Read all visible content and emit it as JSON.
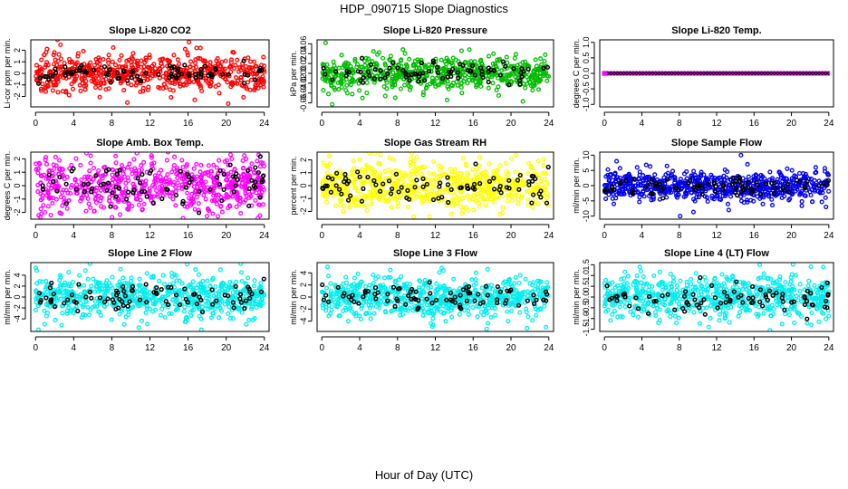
{
  "figure": {
    "title": "HDP_090715  Slope Diagnostics",
    "xlabel": "Hour of Day (UTC)"
  },
  "chart_data": [
    {
      "type": "scatter",
      "title": "Slope Li-820 CO2",
      "ylabel": "Li-cor ppm per min.",
      "xlim": [
        -0.5,
        24.5
      ],
      "xticks": [
        0,
        4,
        8,
        12,
        16,
        20,
        24
      ],
      "ylim": [
        -2.9,
        2.9
      ],
      "yticks": [
        -2,
        -1,
        0,
        1,
        2
      ],
      "color": "#ff0000",
      "main_series": {
        "count": 600,
        "spread": 0.75,
        "outliers": [
          [
            1.2,
            2.1
          ],
          [
            1.9,
            1.6
          ],
          [
            2.3,
            2.9
          ],
          [
            15.7,
            2.1
          ],
          [
            16.1,
            2.7
          ],
          [
            16.9,
            2.2
          ],
          [
            16.7,
            -2.3
          ],
          [
            17.3,
            2.2
          ],
          [
            21.8,
            -1.1
          ],
          [
            13.4,
            -1.3
          ]
        ]
      },
      "black_series": {
        "count": 85,
        "spread": 0.4
      }
    },
    {
      "type": "scatter",
      "title": "Slope Li-820 Pressure",
      "ylabel": "kPa per min.",
      "xlim": [
        -0.5,
        24.5
      ],
      "xticks": [
        0,
        4,
        8,
        12,
        16,
        20,
        24
      ],
      "ylim": [
        -0.068,
        0.068
      ],
      "yticks": [
        -0.06,
        -0.04,
        -0.02,
        0,
        0.02,
        0.04,
        0.06
      ],
      "color": "#00bb00",
      "main_series": {
        "count": 600,
        "spread": 0.018,
        "outliers": [
          [
            0.4,
            0.062
          ],
          [
            0.7,
            -0.042
          ],
          [
            1.1,
            -0.063
          ],
          [
            2.7,
            -0.04
          ],
          [
            4.3,
            -0.05
          ],
          [
            8.8,
            0.04
          ],
          [
            18.7,
            -0.045
          ]
        ]
      },
      "black_series": {
        "count": 85,
        "spread": 0.012
      }
    },
    {
      "type": "scatter",
      "title": "Slope Li-820 Temp.",
      "ylabel": "degrees C per min.",
      "xlim": [
        -0.5,
        24.5
      ],
      "xticks": [
        0,
        4,
        8,
        12,
        16,
        20,
        24
      ],
      "ylim": [
        -1.08,
        1.08
      ],
      "yticks": [
        -1.0,
        -0.5,
        0.0,
        0.5,
        1.0
      ],
      "color": "#ff00ff",
      "main_series": {
        "count": 220,
        "spread": 0,
        "outliers": []
      },
      "black_series": {
        "count": 70,
        "spread": 0
      }
    },
    {
      "type": "scatter",
      "title": "Slope Amb. Box Temp.",
      "ylabel": "degrees C per min.",
      "xlim": [
        -0.5,
        24.5
      ],
      "xticks": [
        0,
        4,
        8,
        12,
        16,
        20,
        24
      ],
      "ylim": [
        -2.5,
        2.5
      ],
      "yticks": [
        -2,
        -1,
        0,
        1,
        2
      ],
      "color": "#ff00ff",
      "main_series": {
        "count": 650,
        "spread": 0.95,
        "outliers": [
          [
            1.6,
            -2.2
          ],
          [
            5.3,
            -1.9
          ],
          [
            8.4,
            2.2
          ],
          [
            13.9,
            2.5
          ],
          [
            18.6,
            -2.1
          ],
          [
            23.4,
            2.3
          ]
        ]
      },
      "black_series": {
        "count": 85,
        "spread": 0.7
      }
    },
    {
      "type": "scatter",
      "title": "Slope Gas Stream RH",
      "ylabel": "percent per min.",
      "xlim": [
        -0.5,
        24.5
      ],
      "xticks": [
        0,
        4,
        8,
        12,
        16,
        20,
        24
      ],
      "ylim": [
        -2.6,
        2.6
      ],
      "yticks": [
        -2,
        -1,
        0,
        1,
        2
      ],
      "color": "#ffff00",
      "main_series": {
        "count": 650,
        "spread": 0.9,
        "outliers": [
          [
            0.8,
            2.3
          ],
          [
            5.6,
            2.5
          ],
          [
            9.7,
            -2.4
          ],
          [
            11.4,
            -2.4
          ],
          [
            13.7,
            -2.2
          ],
          [
            16.7,
            2.2
          ],
          [
            19.1,
            -2.1
          ]
        ]
      },
      "black_series": {
        "count": 85,
        "spread": 0.6
      }
    },
    {
      "type": "scatter",
      "title": "Slope Sample Flow",
      "ylabel": "ml/min per min.",
      "xlim": [
        -0.5,
        24.5
      ],
      "xticks": [
        0,
        4,
        8,
        12,
        16,
        20,
        24
      ],
      "ylim": [
        -11,
        11
      ],
      "yticks": [
        -10,
        -5,
        0,
        5,
        10
      ],
      "color": "#0000ee",
      "main_series": {
        "count": 650,
        "spread": 2.4,
        "outliers": [
          [
            1.3,
            8
          ],
          [
            1.0,
            -6
          ],
          [
            3.5,
            6
          ],
          [
            8.1,
            -10
          ],
          [
            13.3,
            -8
          ],
          [
            14.6,
            10
          ],
          [
            15.3,
            7
          ],
          [
            22.6,
            6
          ],
          [
            23.7,
            -7
          ]
        ]
      },
      "black_series": {
        "count": 85,
        "spread": 1.5
      }
    },
    {
      "type": "scatter",
      "title": "Slope Line 2 Flow",
      "ylabel": "ml/min per min.",
      "xlim": [
        -0.5,
        24.5
      ],
      "xticks": [
        0,
        4,
        8,
        12,
        16,
        20,
        24
      ],
      "ylim": [
        -6.3,
        6.3
      ],
      "yticks": [
        -4,
        -2,
        0,
        2,
        4
      ],
      "color": "#00eeee",
      "main_series": {
        "count": 650,
        "spread": 1.8,
        "outliers": [
          [
            0.3,
            -6
          ],
          [
            2.6,
            4
          ],
          [
            9.3,
            -5
          ],
          [
            15.9,
            6
          ],
          [
            17.4,
            -6
          ],
          [
            19.4,
            5
          ],
          [
            22.1,
            -5
          ]
        ]
      },
      "black_series": {
        "count": 85,
        "spread": 1.2
      }
    },
    {
      "type": "scatter",
      "title": "Slope Line 3 Flow",
      "ylabel": "ml/min per min.",
      "xlim": [
        -0.5,
        24.5
      ],
      "xticks": [
        0,
        4,
        8,
        12,
        16,
        20,
        24
      ],
      "ylim": [
        -5.7,
        5.7
      ],
      "yticks": [
        -4,
        -2,
        0,
        2,
        4
      ],
      "color": "#00eeee",
      "main_series": {
        "count": 650,
        "spread": 1.6,
        "outliers": [
          [
            0.6,
            5
          ],
          [
            2.8,
            -4
          ],
          [
            13.1,
            -4
          ],
          [
            16.3,
            4
          ],
          [
            19.7,
            -4
          ],
          [
            23.7,
            -5
          ]
        ]
      },
      "black_series": {
        "count": 85,
        "spread": 1.1
      }
    },
    {
      "type": "scatter",
      "title": "Slope Line 4 (LT) Flow",
      "ylabel": "ml/min per min.",
      "xlim": [
        -0.5,
        24.5
      ],
      "xticks": [
        0,
        4,
        8,
        12,
        16,
        20,
        24
      ],
      "ylim": [
        -1.6,
        1.6
      ],
      "yticks": [
        -1.5,
        -1.0,
        -0.5,
        0.0,
        0.5,
        1.0,
        1.5
      ],
      "color": "#00eeee",
      "main_series": {
        "count": 650,
        "spread": 0.5,
        "outliers": [
          [
            3.9,
            1.2
          ],
          [
            7.7,
            -1.2
          ],
          [
            9.8,
            1.1
          ],
          [
            16.6,
            1.5
          ],
          [
            20.3,
            -1.2
          ],
          [
            23.4,
            1.4
          ]
        ]
      },
      "black_series": {
        "count": 85,
        "spread": 0.35
      }
    }
  ]
}
